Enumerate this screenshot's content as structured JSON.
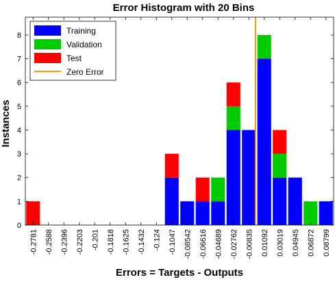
{
  "chart_data": {
    "type": "bar",
    "stacked": true,
    "title": "Error Histogram with 20 Bins",
    "xlabel": "Errors = Targets - Outputs",
    "ylabel": "Instances",
    "ylim": [
      0,
      8.75
    ],
    "yticks": [
      0,
      1,
      2,
      3,
      4,
      5,
      6,
      7,
      8
    ],
    "categories": [
      "-0.2781",
      "-0.2588",
      "-0.2396",
      "-0.2203",
      "-0.201",
      "-0.1818",
      "-0.1625",
      "-0.1432",
      "-0.124",
      "-0.1047",
      "-0.08542",
      "-0.06616",
      "-0.04689",
      "-0.02762",
      "-0.00835",
      "0.01092",
      "0.03019",
      "0.04945",
      "0.06872",
      "0.08799"
    ],
    "series": [
      {
        "name": "Training",
        "color": "#0000ff",
        "values": [
          0,
          0,
          0,
          0,
          0,
          0,
          0,
          0,
          0,
          2,
          1,
          1,
          1,
          4,
          4,
          7,
          2,
          2,
          0,
          1
        ]
      },
      {
        "name": "Validation",
        "color": "#00cc00",
        "values": [
          0,
          0,
          0,
          0,
          0,
          0,
          0,
          0,
          0,
          0,
          0,
          0,
          1,
          1,
          0,
          1,
          1,
          0,
          1,
          0
        ]
      },
      {
        "name": "Test",
        "color": "#ff0000",
        "values": [
          1,
          0,
          0,
          0,
          0,
          0,
          0,
          0,
          0,
          1,
          0,
          1,
          0,
          1,
          0,
          0,
          1,
          0,
          0,
          0
        ]
      }
    ],
    "zero_error": {
      "name": "Zero Error",
      "color": "#ff9900",
      "x": 0
    },
    "legend_position": "top-left",
    "grid": false
  }
}
